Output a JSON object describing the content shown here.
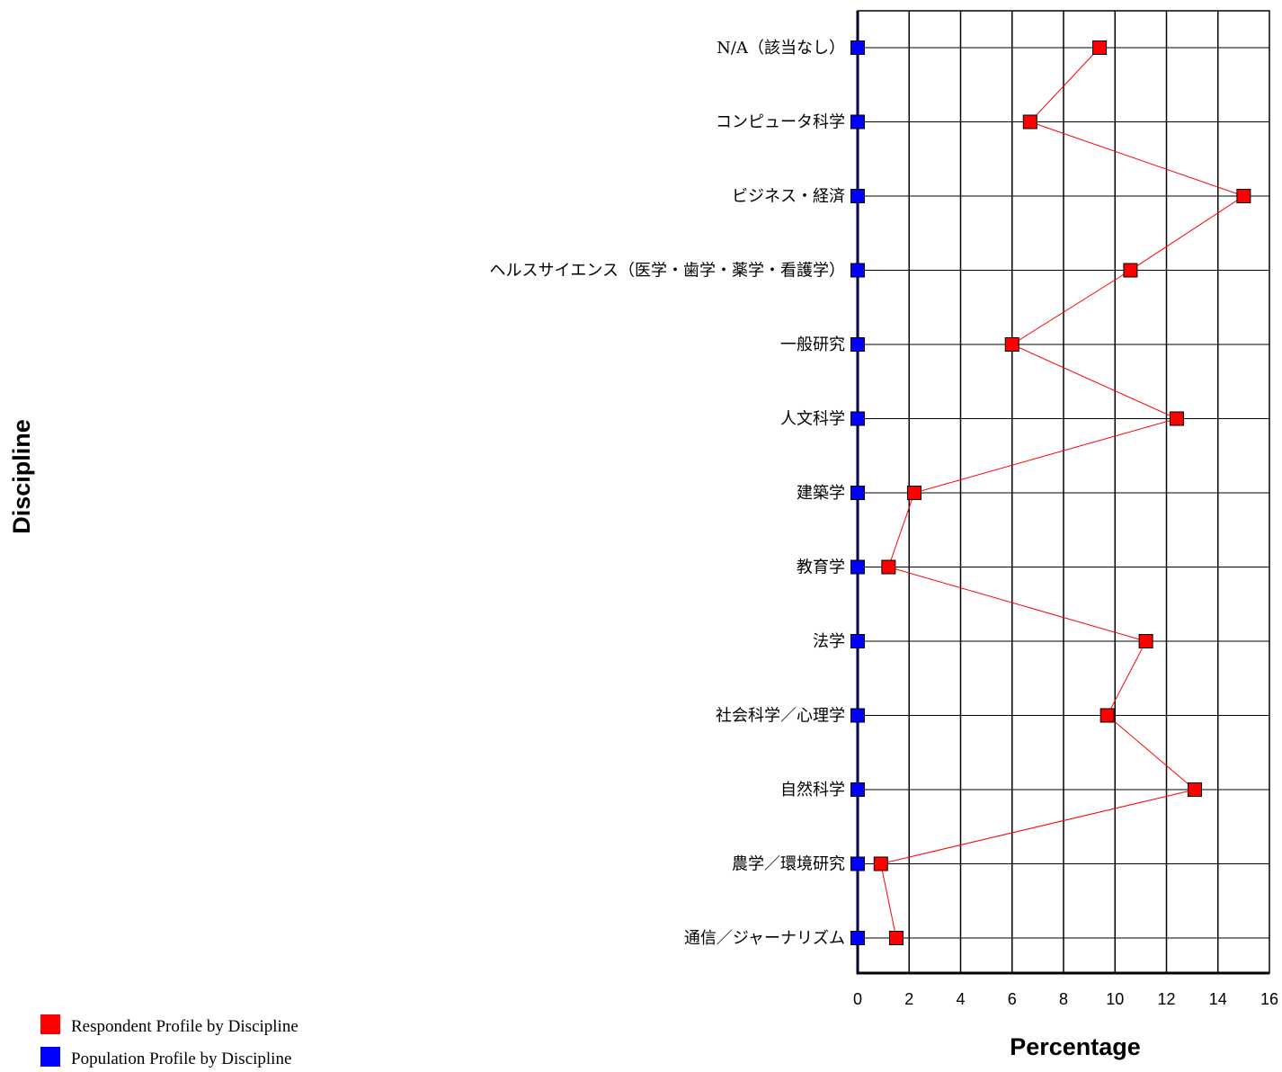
{
  "chart_data": {
    "type": "line",
    "orientation": "horizontal",
    "xlabel": "Percentage",
    "ylabel": "Discipline",
    "xlim": [
      0,
      16
    ],
    "x_ticks": [
      "0",
      "2",
      "4",
      "6",
      "8",
      "10",
      "12",
      "14",
      "16"
    ],
    "grid": true,
    "legend_position": "bottom-left",
    "categories": [
      "N/A（該当なし）",
      "コンピュータ科学",
      "ビジネス・経済",
      "ヘルスサイエンス（医学・歯学・薬学・看護学）",
      "一般研究",
      "人文科学",
      "建築学",
      "教育学",
      "法学",
      "社会科学／心理学",
      "自然科学",
      "農学／環境研究",
      "通信／ジャーナリズム"
    ],
    "series": [
      {
        "name": "Respondent Profile by Discipline",
        "color": "#ff0000",
        "values": [
          9.4,
          6.7,
          15.0,
          10.6,
          6.0,
          12.4,
          2.2,
          1.2,
          11.2,
          9.7,
          13.1,
          0.9,
          1.5
        ]
      },
      {
        "name": "Population Profile by Discipline",
        "color": "#0000ff",
        "values": [
          0,
          0,
          0,
          0,
          0,
          0,
          0,
          0,
          0,
          0,
          0,
          0,
          0
        ]
      }
    ]
  }
}
